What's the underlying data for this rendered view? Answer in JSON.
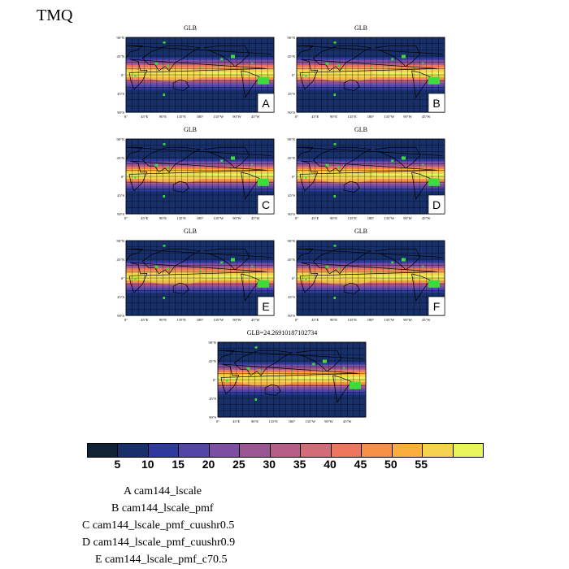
{
  "title": "TMQ",
  "panels": [
    {
      "id": "A",
      "title": "GLB",
      "letter": "A"
    },
    {
      "id": "B",
      "title": "GLB",
      "letter": "B"
    },
    {
      "id": "C",
      "title": "GLB",
      "letter": "C"
    },
    {
      "id": "D",
      "title": "GLB",
      "letter": "D"
    },
    {
      "id": "E",
      "title": "GLB",
      "letter": "E"
    },
    {
      "id": "F",
      "title": "GLB",
      "letter": "F"
    },
    {
      "id": "G",
      "title": "GLB=24.26910187102734",
      "letter": ""
    }
  ],
  "axes": {
    "lat_ticks": [
      "90°N",
      "45°N",
      "0°",
      "45°S",
      "90°S"
    ],
    "lon_ticks": [
      "0°",
      "45°E",
      "90°E",
      "135°E",
      "180°",
      "135°W",
      "90°W",
      "45°W"
    ]
  },
  "chart_data": {
    "type": "heatmap",
    "variable": "TMQ",
    "units": "",
    "colorbar_levels": [
      5,
      10,
      15,
      20,
      25,
      30,
      35,
      40,
      45,
      50,
      55
    ],
    "colorbar_labels": [
      "5",
      "10",
      "15",
      "20",
      "25",
      "30",
      "35",
      "40",
      "45",
      "50",
      "55"
    ],
    "colorbar_colors": [
      "#0f2236",
      "#18306a",
      "#2e3a9e",
      "#5145a8",
      "#7c4fa3",
      "#9b5794",
      "#b75e88",
      "#d46b78",
      "#ee7560",
      "#f88f47",
      "#fbae3d",
      "#f4d44f",
      "#e9f55f"
    ],
    "panel_stats": [
      {
        "panel": "G",
        "label": "GLB",
        "value": 24.26910187102734
      }
    ]
  },
  "legend": [
    "A  cam144_lscale",
    "B  cam144_lscale_pmf",
    "C  cam144_lscale_pmf_cuushr0.5",
    "D  cam144_lscale_pmf_cuushr0.9",
    "E  cam144_lscale_pmf_c70.5"
  ]
}
